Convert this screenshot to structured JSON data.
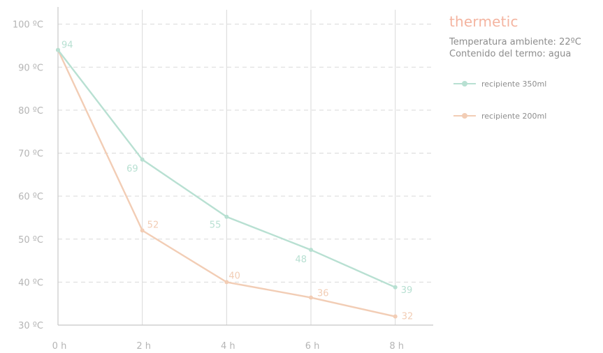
{
  "brand": "thermetic",
  "info": {
    "ambient": "Temperatura ambiente: 22ºC",
    "content": "Contenido del termo: agua"
  },
  "colors": {
    "series1": "#b8e0d2",
    "series2": "#f2cdb5",
    "brand": "#f4b4a0",
    "grid": "#d9d9d9",
    "axis_text": "#b5b5b5"
  },
  "chart_data": {
    "type": "line",
    "x": [
      0,
      2,
      4,
      6,
      8
    ],
    "x_tick_labels": [
      "0 h",
      "2 h",
      "4 h",
      "6 h",
      "8 h"
    ],
    "xlim": [
      0,
      8.9
    ],
    "ylim": [
      30,
      104
    ],
    "y_ticks": [
      30,
      40,
      50,
      60,
      70,
      80,
      90,
      100
    ],
    "y_tick_labels": [
      "30 ºC",
      "40 ºC",
      "50 ºC",
      "60 ºC",
      "70 ºC",
      "80 ºC",
      "90 ºC",
      "100 ºC"
    ],
    "grid": true,
    "legend": "right",
    "series": [
      {
        "name": "recipiente 350ml",
        "values": [
          94,
          68.5,
          55.2,
          47.5,
          38.8
        ],
        "labels": [
          "94",
          "69",
          "55",
          "48",
          "39"
        ],
        "color": "#b8e0d2"
      },
      {
        "name": "recipiente 200ml",
        "values": [
          94,
          52.0,
          40.0,
          36.4,
          32.0
        ],
        "labels": [
          "",
          "52",
          "40",
          "36",
          "32"
        ],
        "color": "#f2cdb5"
      }
    ]
  }
}
